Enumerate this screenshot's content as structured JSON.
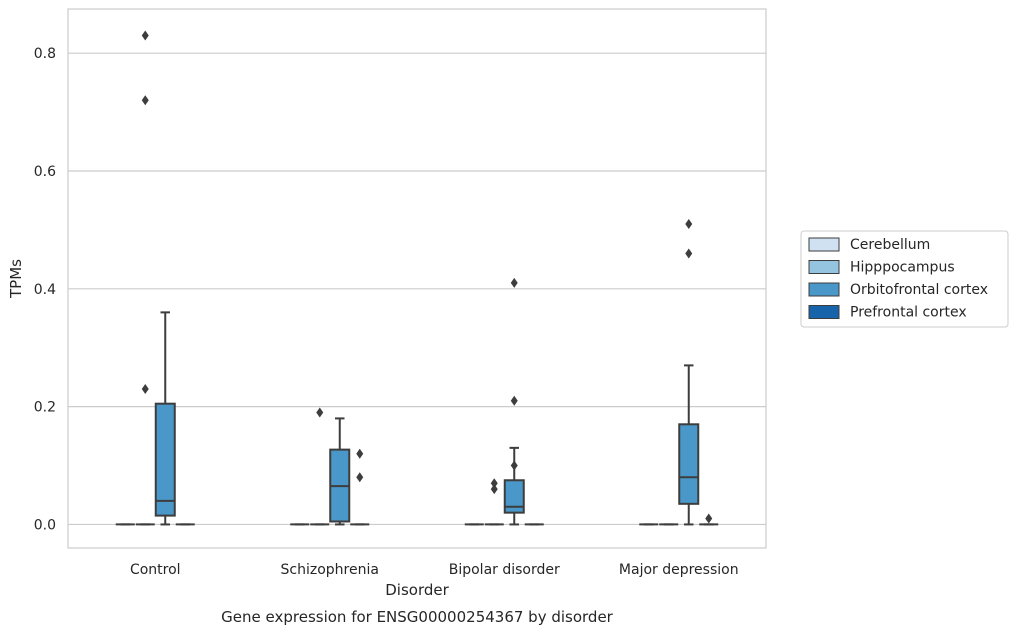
{
  "chart_data": {
    "type": "box",
    "xlabel": "Disorder",
    "ylabel": "TPMs",
    "caption": "Gene expression for ENSG00000254367 by disorder",
    "ylim": [
      -0.04,
      0.875
    ],
    "yticks": [
      0.0,
      0.2,
      0.4,
      0.6,
      0.8
    ],
    "ytick_labels": [
      "0.0",
      "0.2",
      "0.4",
      "0.6",
      "0.8"
    ],
    "grid": "horizontal",
    "legend_placement": "right",
    "categories": [
      "Control",
      "Schizophrenia",
      "Bipolar disorder",
      "Major depression"
    ],
    "series": [
      {
        "name": "Cerebellum",
        "color": "#d0e1f2",
        "boxes": [
          {
            "q1": 0,
            "median": 0,
            "q3": 0,
            "whisker_low": 0,
            "whisker_high": 0,
            "outliers": []
          },
          {
            "q1": 0,
            "median": 0,
            "q3": 0,
            "whisker_low": 0,
            "whisker_high": 0,
            "outliers": []
          },
          {
            "q1": 0,
            "median": 0,
            "q3": 0,
            "whisker_low": 0,
            "whisker_high": 0,
            "outliers": []
          },
          {
            "q1": 0,
            "median": 0,
            "q3": 0,
            "whisker_low": 0,
            "whisker_high": 0,
            "outliers": []
          }
        ]
      },
      {
        "name": "Hipppocampus",
        "color": "#94c4df",
        "boxes": [
          {
            "q1": 0,
            "median": 0,
            "q3": 0,
            "whisker_low": 0,
            "whisker_high": 0,
            "outliers": [
              0.23,
              0.83,
              0.72
            ]
          },
          {
            "q1": 0,
            "median": 0,
            "q3": 0,
            "whisker_low": 0,
            "whisker_high": 0,
            "outliers": [
              0.19
            ]
          },
          {
            "q1": 0,
            "median": 0,
            "q3": 0,
            "whisker_low": 0,
            "whisker_high": 0,
            "outliers": [
              0.07,
              0.06
            ]
          },
          {
            "q1": 0,
            "median": 0,
            "q3": 0,
            "whisker_low": 0,
            "whisker_high": 0,
            "outliers": []
          }
        ]
      },
      {
        "name": "Orbitofrontal cortex",
        "color": "#4a98c9",
        "boxes": [
          {
            "q1": 0.015,
            "median": 0.04,
            "q3": 0.205,
            "whisker_low": 0,
            "whisker_high": 0.36,
            "outliers": []
          },
          {
            "q1": 0.005,
            "median": 0.065,
            "q3": 0.127,
            "whisker_low": 0,
            "whisker_high": 0.18,
            "outliers": []
          },
          {
            "q1": 0.02,
            "median": 0.03,
            "q3": 0.075,
            "whisker_low": 0,
            "whisker_high": 0.13,
            "outliers": [
              0.1,
              0.41,
              0.21
            ]
          },
          {
            "q1": 0.035,
            "median": 0.08,
            "q3": 0.17,
            "whisker_low": 0,
            "whisker_high": 0.27,
            "outliers": [
              0.46,
              0.51
            ]
          }
        ]
      },
      {
        "name": "Prefrontal cortex",
        "color": "#1764ab",
        "boxes": [
          {
            "q1": 0,
            "median": 0,
            "q3": 0,
            "whisker_low": 0,
            "whisker_high": 0,
            "outliers": []
          },
          {
            "q1": 0,
            "median": 0,
            "q3": 0,
            "whisker_low": 0,
            "whisker_high": 0,
            "outliers": [
              0.12,
              0.08
            ]
          },
          {
            "q1": 0,
            "median": 0,
            "q3": 0,
            "whisker_low": 0,
            "whisker_high": 0,
            "outliers": []
          },
          {
            "q1": 0,
            "median": 0,
            "q3": 0,
            "whisker_low": 0,
            "whisker_high": 0,
            "outliers": [
              0.01
            ]
          }
        ]
      }
    ]
  }
}
